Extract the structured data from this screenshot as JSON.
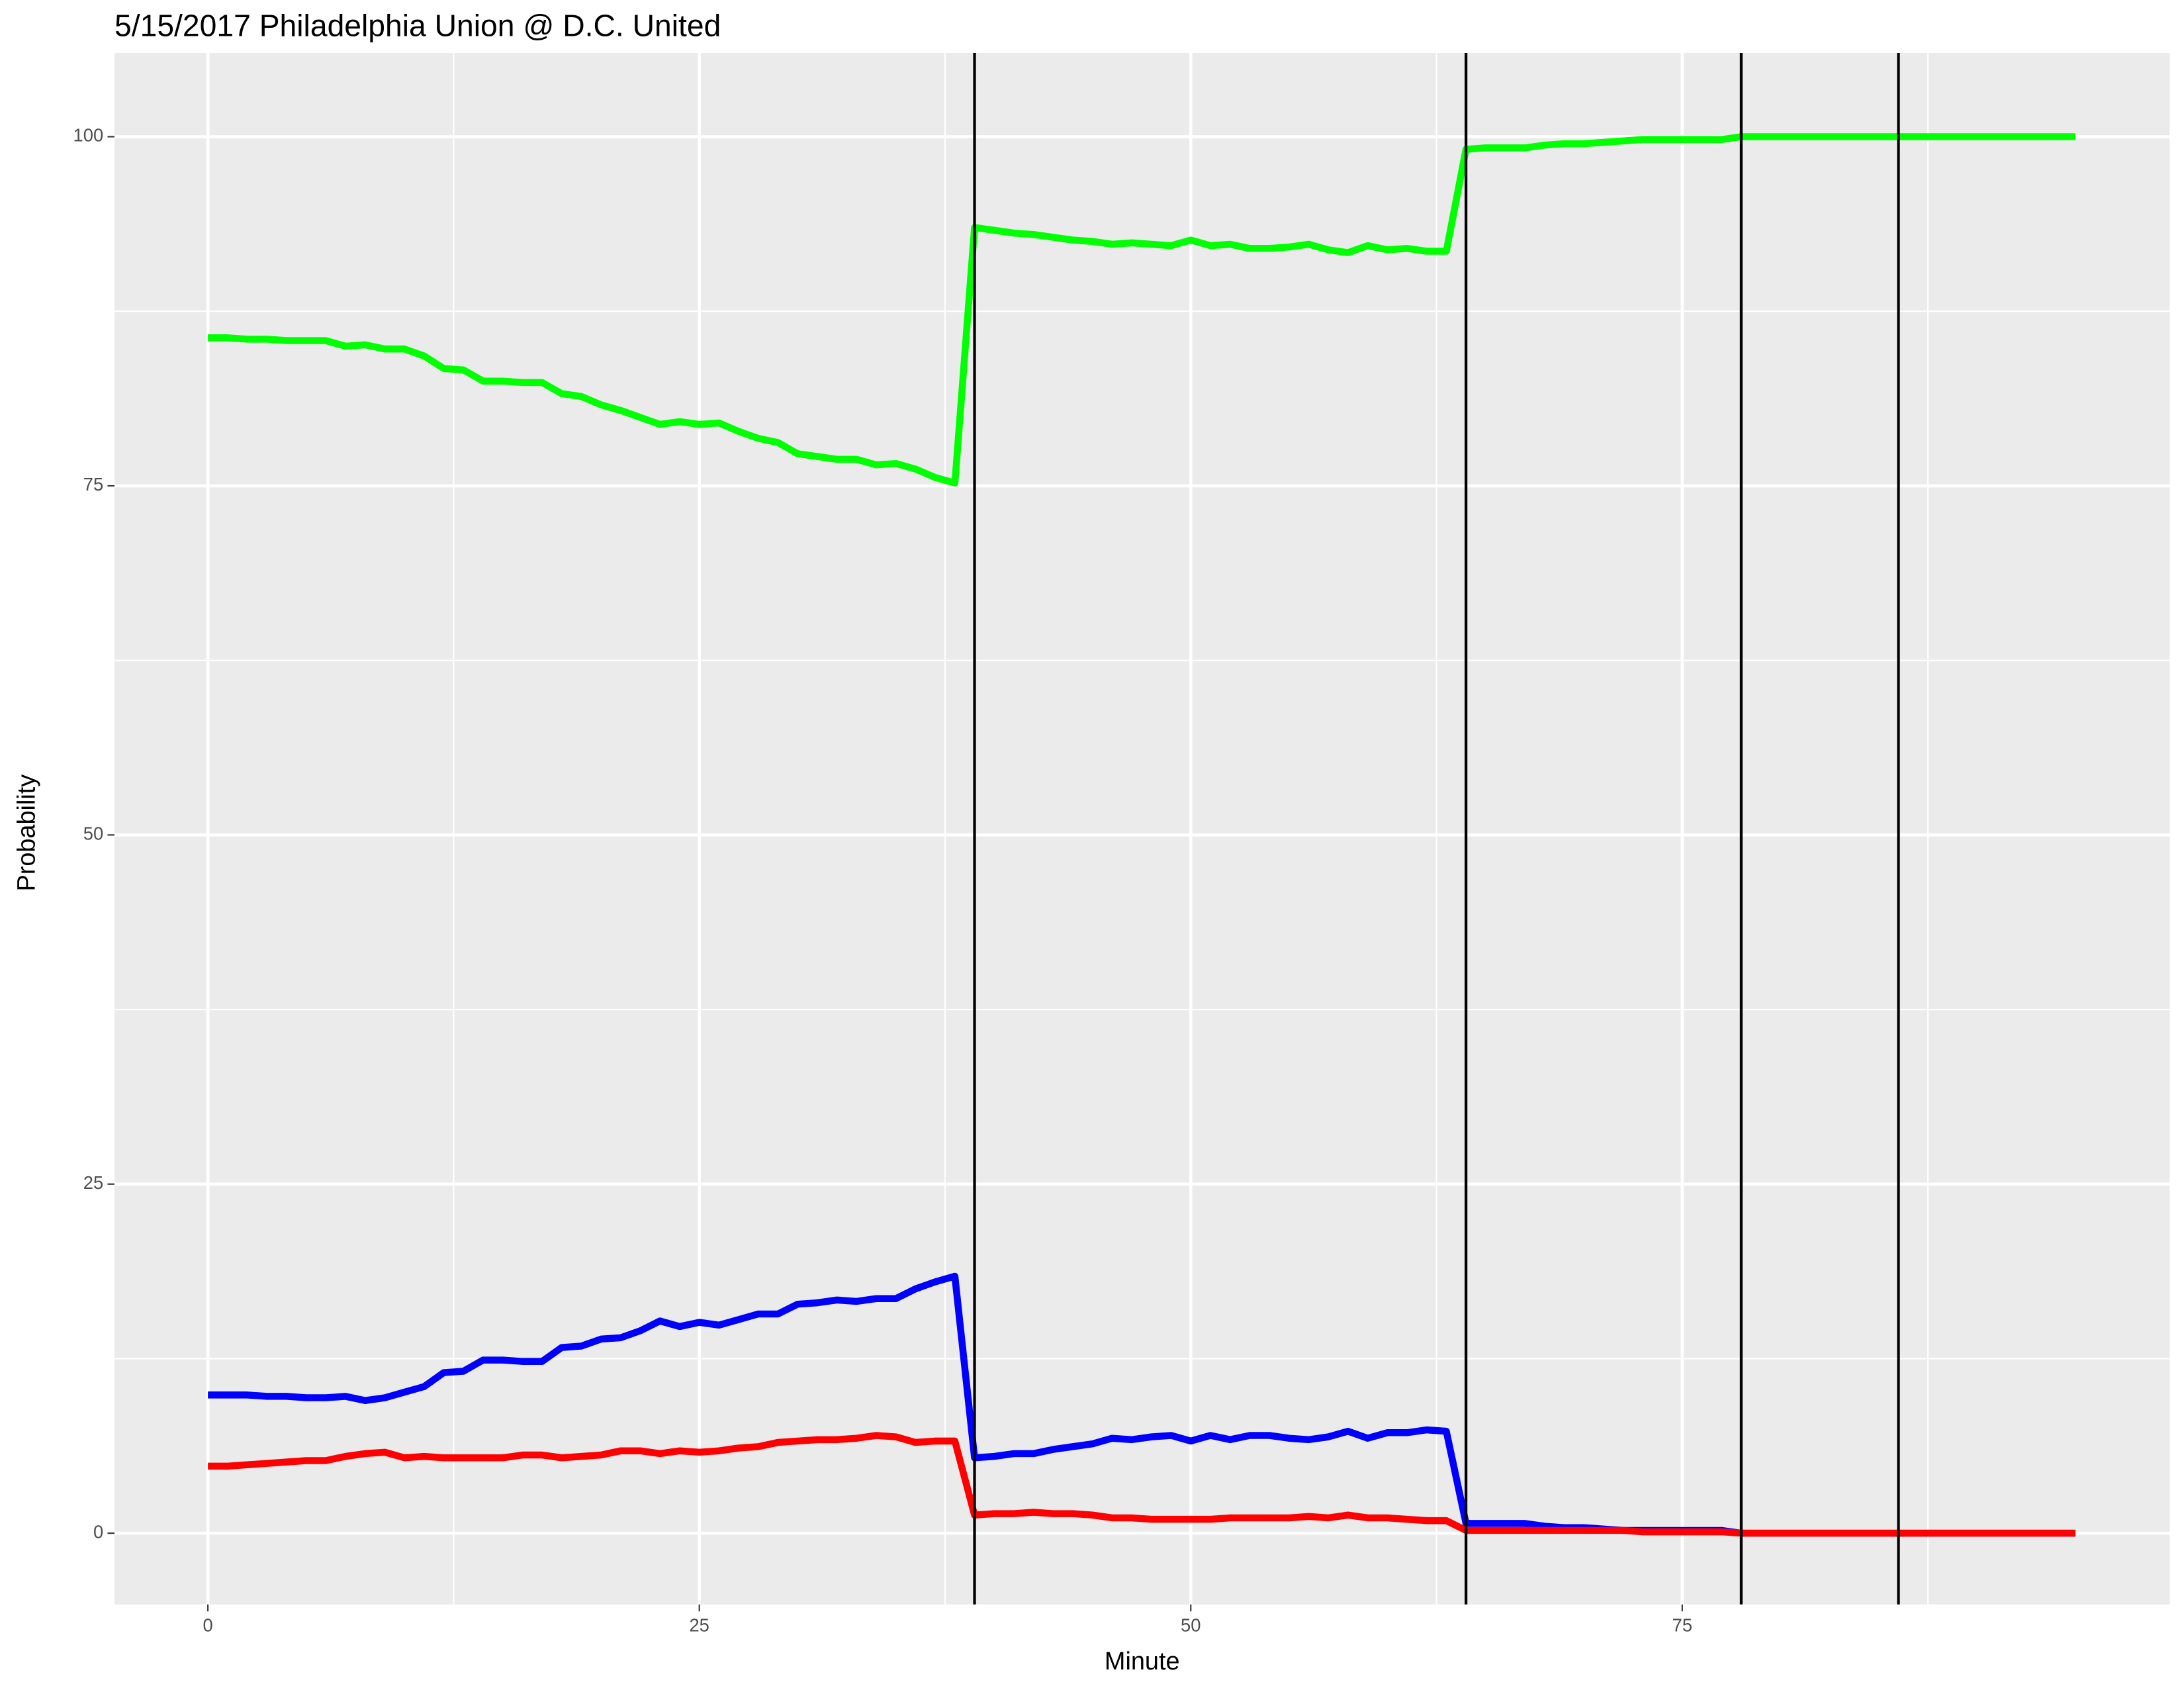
{
  "chart_data": {
    "type": "line",
    "title": "5/15/2017 Philadelphia Union @ D.C. United",
    "x_label": "Minute",
    "y_label": "Probability",
    "x": [
      0,
      1,
      2,
      3,
      4,
      5,
      6,
      7,
      8,
      9,
      10,
      11,
      12,
      13,
      14,
      15,
      16,
      17,
      18,
      19,
      20,
      21,
      22,
      23,
      24,
      25,
      26,
      27,
      28,
      29,
      30,
      31,
      32,
      33,
      34,
      35,
      36,
      37,
      38,
      39,
      40,
      41,
      42,
      43,
      44,
      45,
      46,
      47,
      48,
      49,
      50,
      51,
      52,
      53,
      54,
      55,
      56,
      57,
      58,
      59,
      60,
      61,
      62,
      63,
      64,
      65,
      66,
      67,
      68,
      69,
      70,
      71,
      72,
      73,
      74,
      75,
      76,
      77,
      78,
      79,
      80,
      81,
      82,
      83,
      84,
      85,
      86,
      87,
      88,
      89,
      90,
      91,
      92,
      93,
      94,
      95
    ],
    "series": [
      {
        "color": "#00ff00",
        "values": [
          85.6,
          85.6,
          85.5,
          85.5,
          85.4,
          85.4,
          85.4,
          85,
          85.1,
          84.8,
          84.8,
          84.3,
          83.4,
          83.3,
          82.5,
          82.5,
          82.4,
          82.4,
          81.6,
          81.4,
          80.8,
          80.4,
          79.9,
          79.4,
          79.6,
          79.4,
          79.5,
          78.9,
          78.4,
          78.1,
          77.3,
          77.1,
          76.9,
          76.9,
          76.5,
          76.6,
          76.2,
          75.6,
          75.2,
          93.5,
          93.3,
          93.1,
          93,
          92.8,
          92.6,
          92.5,
          92.3,
          92.4,
          92.3,
          92.2,
          92.6,
          92.2,
          92.3,
          92,
          92,
          92.1,
          92.3,
          91.9,
          91.7,
          92.2,
          91.9,
          92,
          91.8,
          91.8,
          99.1,
          99.2,
          99.2,
          99.2,
          99.4,
          99.5,
          99.5,
          99.6,
          99.7,
          99.8,
          99.8,
          99.8,
          99.8,
          99.8,
          100,
          100,
          100,
          100,
          100,
          100,
          100,
          100,
          100,
          100,
          100,
          100,
          100,
          100,
          100,
          100,
          100,
          100
        ]
      },
      {
        "color": "#0000ff",
        "values": [
          9.9,
          9.9,
          9.9,
          9.8,
          9.8,
          9.7,
          9.7,
          9.8,
          9.5,
          9.7,
          10.1,
          10.5,
          11.5,
          11.6,
          12.4,
          12.4,
          12.3,
          12.3,
          13.3,
          13.4,
          13.9,
          14,
          14.5,
          15.2,
          14.8,
          15.1,
          14.9,
          15.3,
          15.7,
          15.7,
          16.4,
          16.5,
          16.7,
          16.6,
          16.8,
          16.8,
          17.5,
          18,
          18.4,
          5.4,
          5.5,
          5.7,
          5.7,
          6,
          6.2,
          6.4,
          6.8,
          6.7,
          6.9,
          7,
          6.6,
          7,
          6.7,
          7,
          7,
          6.8,
          6.7,
          6.9,
          7.3,
          6.8,
          7.2,
          7.2,
          7.4,
          7.3,
          0.7,
          0.7,
          0.7,
          0.7,
          0.5,
          0.4,
          0.4,
          0.3,
          0.2,
          0.2,
          0.2,
          0.2,
          0.2,
          0.2,
          0,
          0,
          0,
          0,
          0,
          0,
          0,
          0,
          0,
          0,
          0,
          0,
          0,
          0,
          0,
          0,
          0,
          0
        ]
      },
      {
        "color": "#ff0000",
        "values": [
          4.8,
          4.8,
          4.9,
          5,
          5.1,
          5.2,
          5.2,
          5.5,
          5.7,
          5.8,
          5.4,
          5.5,
          5.4,
          5.4,
          5.4,
          5.4,
          5.6,
          5.6,
          5.4,
          5.5,
          5.6,
          5.9,
          5.9,
          5.7,
          5.9,
          5.8,
          5.9,
          6.1,
          6.2,
          6.5,
          6.6,
          6.7,
          6.7,
          6.8,
          7,
          6.9,
          6.5,
          6.6,
          6.6,
          1.3,
          1.4,
          1.4,
          1.5,
          1.4,
          1.4,
          1.3,
          1.1,
          1.1,
          1,
          1,
          1,
          1,
          1.1,
          1.1,
          1.1,
          1.1,
          1.2,
          1.1,
          1.3,
          1.1,
          1.1,
          1,
          0.9,
          0.9,
          0.2,
          0.2,
          0.2,
          0.2,
          0.2,
          0.2,
          0.2,
          0.2,
          0.2,
          0.1,
          0.1,
          0.1,
          0.1,
          0.1,
          0,
          0,
          0,
          0,
          0,
          0,
          0,
          0,
          0,
          0,
          0,
          0,
          0,
          0,
          0,
          0,
          0,
          0
        ]
      }
    ],
    "vlines": [
      39,
      64,
      78,
      86
    ],
    "xlim": [
      -4.75,
      99.8
    ],
    "ylim": [
      -5.1,
      106
    ],
    "xticks": [
      0,
      25,
      50,
      75
    ],
    "yticks": [
      0,
      25,
      50,
      75,
      100
    ],
    "minor_xticks": [
      12.5,
      37.5,
      62.5,
      87.5
    ],
    "minor_yticks": [
      12.5,
      37.5,
      62.5,
      87.5
    ],
    "grid": true
  }
}
